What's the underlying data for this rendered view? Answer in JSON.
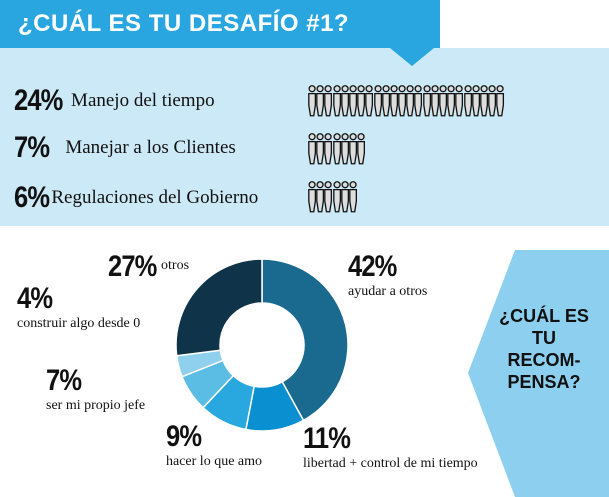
{
  "header": {
    "title": "¿CUÁL ES TU DESAFÍO #1?",
    "color": "#29a6e0"
  },
  "challenges": [
    {
      "pct": "24%",
      "label": "Manejo del tiempo",
      "value": 24
    },
    {
      "pct": "7%",
      "label": "Manejar a los Clientes",
      "value": 7
    },
    {
      "pct": "6%",
      "label": "Regulaciones del Gobierno",
      "value": 6
    }
  ],
  "reward": {
    "title_lines": [
      "¿CUÁL ES",
      "TU",
      "RECOM-",
      "PENSA?"
    ]
  },
  "chart_data": [
    {
      "type": "bar",
      "title": "¿CUÁL ES TU DESAFÍO #1?",
      "categories": [
        "Manejo del tiempo",
        "Manejar a los Clientes",
        "Regulaciones del Gobierno"
      ],
      "values": [
        24,
        7,
        6
      ],
      "unit": "%"
    },
    {
      "type": "pie",
      "variant": "donut",
      "title": "¿CUÁL ES TU RECOMPENSA?",
      "slices": [
        {
          "label": "ayudar a otros",
          "pct": "42%",
          "value": 42,
          "color": "#1a6a90"
        },
        {
          "label": "libertad + control de mi tiempo",
          "pct": "11%",
          "value": 11,
          "color": "#0a8fd0"
        },
        {
          "label": "hacer lo que amo",
          "pct": "9%",
          "value": 9,
          "color": "#29a8e0"
        },
        {
          "label": "ser mi propio jefe",
          "pct": "7%",
          "value": 7,
          "color": "#5bbce4"
        },
        {
          "label": "construir algo desde 0",
          "pct": "4%",
          "value": 4,
          "color": "#8fd0ee"
        },
        {
          "label": "otros",
          "pct": "27%",
          "value": 27,
          "color": "#0f3349"
        }
      ]
    }
  ]
}
